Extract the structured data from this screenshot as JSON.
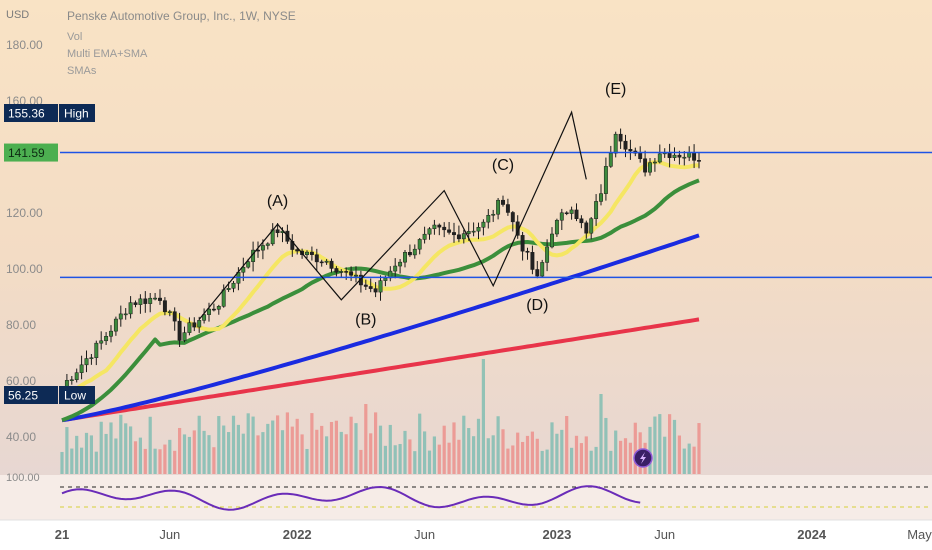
{
  "header": {
    "currency": "USD",
    "title": "Penske Automotive Group, Inc., 1W, NYSE",
    "indicators": [
      "Vol",
      "Multi EMA+SMA",
      "SMAs"
    ]
  },
  "y_axis": {
    "ticks": [
      "180.00",
      "160.00",
      "120.00",
      "100.00",
      "80.00",
      "60.00",
      "40.00"
    ],
    "values": [
      180,
      160,
      120,
      100,
      80,
      60,
      40
    ]
  },
  "x_axis": {
    "ticks": [
      "21",
      "Jun",
      "2022",
      "Jun",
      "2023",
      "Jun",
      "2024",
      "May"
    ],
    "bold": [
      true,
      false,
      true,
      false,
      true,
      false,
      true,
      false
    ],
    "positions_weeks": [
      0,
      22,
      48,
      74,
      101,
      123,
      153,
      175
    ]
  },
  "price_tags": {
    "high": {
      "value": "155.36",
      "label": "High"
    },
    "current": {
      "value": "141.59"
    },
    "low": {
      "value": "56.25",
      "label": "Low"
    }
  },
  "osc_axis_label": "100.00",
  "colors": {
    "up": "#26a69a",
    "down": "#ef5350",
    "hline": "#1e53e5",
    "ema_yellow": "#f5e663",
    "sma_green": "#3b8f3b",
    "sma_blue": "#1a2be0",
    "sma_red": "#e8344a",
    "oscillator": "#6a2cb8",
    "tag_dark": "#0d2a55",
    "tag_green": "#4caf50"
  },
  "chart_data": {
    "type": "candlestick",
    "title": "Penske Automotive Group, Inc., 1W, NYSE",
    "horizontal_lines": [
      141.59,
      97
    ],
    "pattern_labels": [
      {
        "label": "(A)",
        "week": 44,
        "price": 116
      },
      {
        "label": "(B)",
        "week": 62,
        "price": 88
      },
      {
        "label": "(C)",
        "week": 90,
        "price": 129
      },
      {
        "label": "(D)",
        "week": 97,
        "price": 94
      },
      {
        "label": "(E)",
        "week": 113,
        "price": 155.36
      }
    ],
    "high": 155.36,
    "low": 56.25,
    "last": 141.59
  }
}
